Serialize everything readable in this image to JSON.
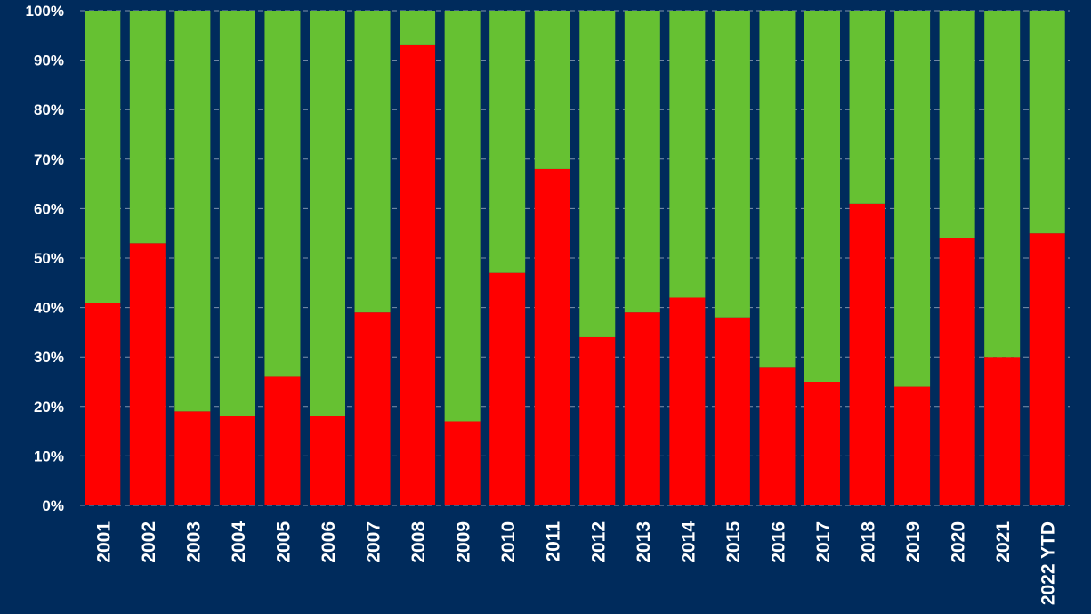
{
  "chart_data": {
    "type": "bar",
    "stacked": true,
    "categories": [
      "2001",
      "2002",
      "2003",
      "2004",
      "2005",
      "2006",
      "2007",
      "2008",
      "2009",
      "2010",
      "2011",
      "2012",
      "2013",
      "2014",
      "2015",
      "2016",
      "2017",
      "2018",
      "2019",
      "2020",
      "2021",
      "2022 YTD"
    ],
    "series": [
      {
        "color": "#ff0000",
        "values": [
          41,
          53,
          19,
          18,
          26,
          18,
          39,
          93,
          17,
          47,
          68,
          34,
          39,
          42,
          38,
          28,
          25,
          61,
          24,
          54,
          30,
          55
        ]
      },
      {
        "color": "#66c132",
        "values": [
          59,
          47,
          81,
          82,
          74,
          82,
          61,
          7,
          83,
          53,
          32,
          66,
          61,
          58,
          62,
          72,
          75,
          39,
          76,
          46,
          70,
          45
        ]
      }
    ],
    "y_ticks": [
      "0%",
      "10%",
      "20%",
      "30%",
      "40%",
      "50%",
      "60%",
      "70%",
      "80%",
      "90%",
      "100%"
    ],
    "ylim": [
      0,
      100
    ],
    "grid": "horizontal dashed",
    "title": "",
    "xlabel": "",
    "ylabel": ""
  },
  "colors": {
    "background": "#002b5c",
    "text": "#ffffff"
  }
}
